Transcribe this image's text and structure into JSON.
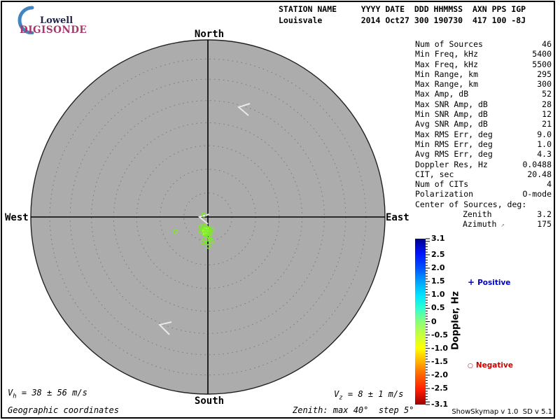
{
  "logo": {
    "lowell": "Lowell",
    "digisonde": "DIGISONDE",
    "crescent_color": "#4285c0"
  },
  "header": {
    "line1": "STATION NAME     YYYY DATE  DDD HHMMSS  AXN PPS IGP",
    "line2": "Louisvale        2014 Oct27 300 190730  417 100 -8J"
  },
  "stats": {
    "rows": [
      {
        "label": "Num of Sources",
        "value": "46"
      },
      {
        "label": "Min Freq, kHz",
        "value": "5400"
      },
      {
        "label": "Max Freq, kHz",
        "value": "5500"
      },
      {
        "label": "Min Range, km",
        "value": "295"
      },
      {
        "label": "Max Range, km",
        "value": "300"
      },
      {
        "label": "Max Amp, dB",
        "value": "52"
      },
      {
        "label": "Max SNR Amp, dB",
        "value": "28"
      },
      {
        "label": "Min SNR Amp, dB",
        "value": "12"
      },
      {
        "label": "Avg SNR Amp, dB",
        "value": "21"
      },
      {
        "label": "Max RMS Err, deg",
        "value": "9.0"
      },
      {
        "label": "Min RMS Err, deg",
        "value": "1.0"
      },
      {
        "label": "Avg RMS Err, deg",
        "value": "4.3"
      },
      {
        "label": "Doppler Res, Hz",
        "value": "0.0488"
      },
      {
        "label": "CIT, sec",
        "value": "20.48"
      },
      {
        "label": "Num of CITs",
        "value": "4"
      },
      {
        "label": "Polarization",
        "value": "O-mode"
      },
      {
        "label": "Center of Sources, deg:",
        "value": ""
      },
      {
        "label": "Zenith",
        "value": "3.2",
        "indent": true
      },
      {
        "label": "Azimuth",
        "value": "175",
        "indent": true,
        "icon": "↗"
      }
    ]
  },
  "colorbar": {
    "title": "Doppler, Hz",
    "range_min": -3.1,
    "range_max": 3.1,
    "tick_labels": [
      "3.1",
      "2.5",
      "2.0",
      "1.5",
      "1.0",
      "0.5",
      "0",
      "-0.5",
      "-1.0",
      "-1.5",
      "-2.0",
      "-2.5",
      "-3.1"
    ],
    "gradient": [
      [
        "0%",
        "#00008b"
      ],
      [
        "9%",
        "#0014ff"
      ],
      [
        "18%",
        "#0055ff"
      ],
      [
        "26%",
        "#00a4ff"
      ],
      [
        "34%",
        "#00e4ff"
      ],
      [
        "42%",
        "#2effd0"
      ],
      [
        "50%",
        "#8aff7a"
      ],
      [
        "58%",
        "#c6ff3e"
      ],
      [
        "66%",
        "#ffff00"
      ],
      [
        "74%",
        "#ffb400"
      ],
      [
        "82%",
        "#ff6400"
      ],
      [
        "91%",
        "#ff1e00"
      ],
      [
        "100%",
        "#9b0000"
      ]
    ],
    "positive_marker": "+",
    "positive_label": "Positive",
    "positive_color": "#0000cd",
    "negative_marker": "○",
    "negative_label": "Negative",
    "negative_color": "#cc0000"
  },
  "skymap": {
    "compass": {
      "north": "North",
      "south": "South",
      "east": "East",
      "west": "West"
    },
    "max_zenith_deg": 40,
    "step_deg": 5,
    "background": "#acacac",
    "dot_color": "#7fe82a",
    "dot_fill": "#a4ff3e",
    "dots": [
      [
        291,
        307,
        0
      ],
      [
        287,
        324,
        0
      ],
      [
        291,
        323,
        0
      ],
      [
        294,
        324,
        0
      ],
      [
        289,
        328,
        0
      ],
      [
        293,
        327,
        1
      ],
      [
        296,
        327,
        1
      ],
      [
        299,
        327,
        0
      ],
      [
        287,
        331,
        0
      ],
      [
        291,
        330,
        1
      ],
      [
        294,
        331,
        1
      ],
      [
        297,
        331,
        1
      ],
      [
        300,
        330,
        0
      ],
      [
        303,
        328,
        0
      ],
      [
        292,
        334,
        1
      ],
      [
        295,
        334,
        1
      ],
      [
        298,
        334,
        0
      ],
      [
        301,
        333,
        0
      ],
      [
        296,
        337,
        0
      ],
      [
        299,
        338,
        0
      ],
      [
        293,
        342,
        0
      ],
      [
        300,
        342,
        0
      ],
      [
        290,
        346,
        0
      ],
      [
        297,
        347,
        0
      ],
      [
        302,
        345,
        0
      ],
      [
        298,
        352,
        0
      ],
      [
        251,
        331,
        0
      ]
    ],
    "arrows": [
      [
        357,
        148,
        341,
        153,
        355,
        165
      ],
      [
        299,
        306,
        285,
        310,
        297,
        320
      ],
      [
        245,
        460,
        228,
        464,
        242,
        478
      ]
    ]
  },
  "footer": {
    "vh_main": "V",
    "vh_sub": "h",
    "vh_rest": " = 38 ± 56 m/s",
    "vz_main": "V",
    "vz_sub": "z",
    "vz_rest": " = 8 ± 1 m/s",
    "coords": "Geographic coordinates",
    "zenith_note": "Zenith: max 40°  step 5°",
    "version": "ShowSkymap v 1.0  SD v 5.1"
  }
}
